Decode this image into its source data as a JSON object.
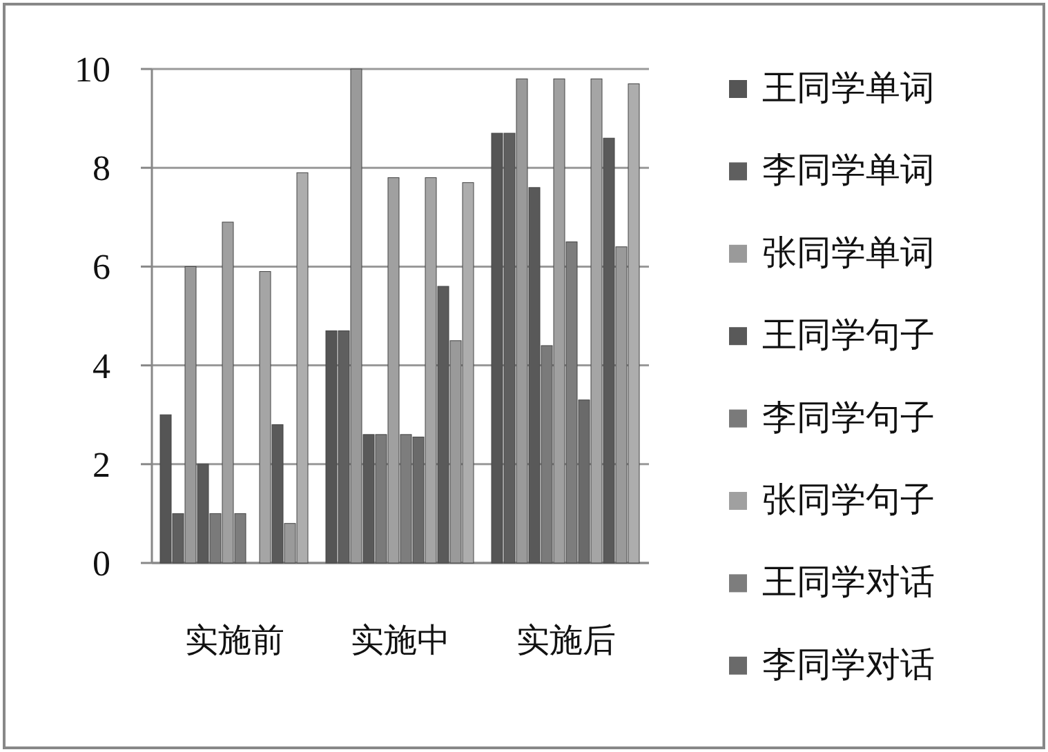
{
  "chart_data": {
    "type": "bar",
    "categories": [
      "实施前",
      "实施中",
      "实施后"
    ],
    "series": [
      {
        "name": "王同学单词",
        "color": "#555555",
        "values": [
          3.0,
          4.7,
          8.7
        ]
      },
      {
        "name": "李同学单词",
        "color": "#5f5f5f",
        "values": [
          1.0,
          4.7,
          8.7
        ]
      },
      {
        "name": "张同学单词",
        "color": "#9a9a9a",
        "values": [
          6.0,
          10.0,
          9.8
        ]
      },
      {
        "name": "王同学句子",
        "color": "#595959",
        "values": [
          2.0,
          2.6,
          7.6
        ]
      },
      {
        "name": "李同学句子",
        "color": "#7a7a7a",
        "values": [
          1.0,
          2.6,
          4.4
        ]
      },
      {
        "name": "张同学句子",
        "color": "#a0a0a0",
        "values": [
          6.9,
          7.8,
          9.8
        ]
      },
      {
        "name": "王同学对话",
        "color": "#7d7d7d",
        "values": [
          1.0,
          2.6,
          6.5
        ]
      },
      {
        "name": "李同学对话",
        "color": "#6a6a6a",
        "values": [
          0,
          2.55,
          3.3
        ]
      },
      {
        "color": "#a5a5a5",
        "values": [
          5.9,
          7.8,
          9.8
        ]
      },
      {
        "color": "#5a5a5a",
        "values": [
          2.8,
          5.6,
          8.6
        ]
      },
      {
        "color": "#9a9a9a",
        "values": [
          0.8,
          4.5,
          6.4
        ]
      },
      {
        "color": "#adadad",
        "values": [
          7.9,
          7.7,
          9.7
        ]
      }
    ],
    "ylim": [
      0,
      10
    ],
    "yticks": [
      0,
      2,
      4,
      6,
      8,
      10
    ],
    "grid": "y",
    "legend": "right"
  }
}
